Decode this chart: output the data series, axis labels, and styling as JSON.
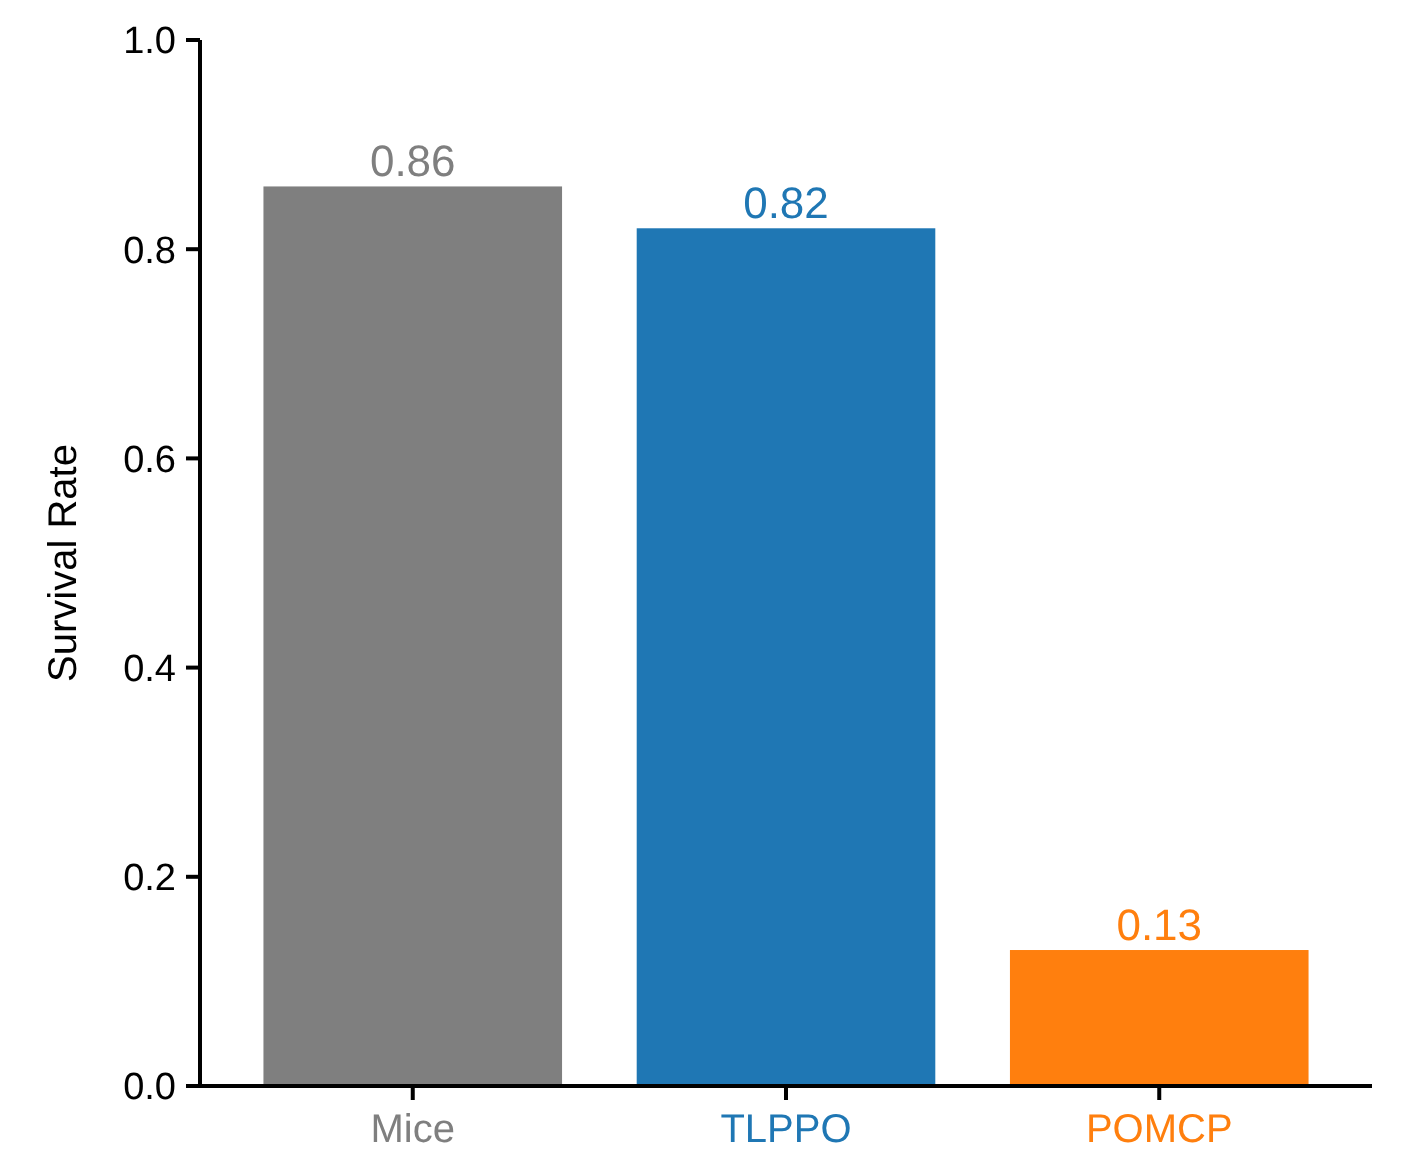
{
  "chart_data": {
    "type": "bar",
    "ylabel": "Survival Rate",
    "categories": [
      "Mice",
      "TLPPO",
      "POMCP"
    ],
    "values": [
      0.86,
      0.82,
      0.13
    ],
    "colors": [
      "#7f7f7f",
      "#1f77b4",
      "#ff7f0e"
    ],
    "data_labels": true,
    "ylim": [
      0,
      1
    ],
    "yticks": [
      {
        "value": 0,
        "label": "0.0"
      },
      {
        "value": 0.2,
        "label": "0.2"
      },
      {
        "value": 0.4,
        "label": "0.4"
      },
      {
        "value": 0.6,
        "label": "0.6"
      },
      {
        "value": 0.8,
        "label": "0.8"
      },
      {
        "value": 1,
        "label": "1.0"
      }
    ],
    "grid": false
  }
}
